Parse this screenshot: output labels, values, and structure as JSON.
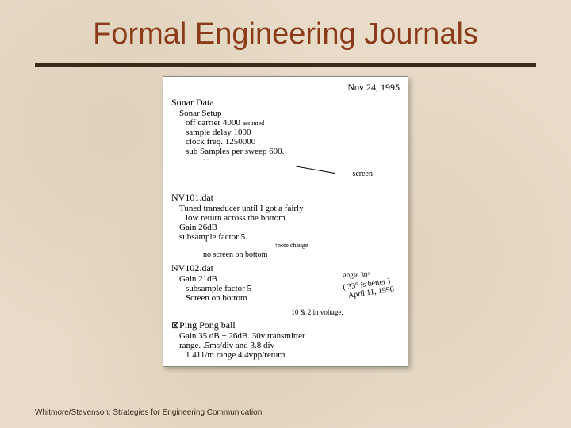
{
  "slide": {
    "title": "Formal Engineering Journals",
    "title_color": "#8b3a1a",
    "rule_color": "#3a2a1a",
    "background_color": "#e8dcc8"
  },
  "journal": {
    "date": "Nov 24, 1995",
    "heading": "Sonar Data",
    "setup_label": "Sonar Setup",
    "off_carrier": "off carrier 4000",
    "assumed": "assumed",
    "sample_delay": "sample delay 1000",
    "clock_freq": "clock freq.   1250000",
    "samples_sweep_strike": "sub",
    "samples_sweep": "Samples per sweep 600.",
    "screen_label": "screen",
    "nv101": {
      "name": "NV101.dat",
      "line1": "Tuned transducer until I got a fairly",
      "line2": "low return across the bottom.",
      "gain": "Gain 26dB",
      "subsample": "subsample factor 5.",
      "note_change": "↑note change",
      "no_screen": "no screen on bottom"
    },
    "angle": {
      "deg": "angle 30°",
      "better": "33° is better",
      "date_note": "April 11, 1996"
    },
    "nv102": {
      "name": "NV102.dat",
      "gain": "Gain 21dB",
      "subsample": "subsample factor 5",
      "screen_on": "Screen on bottom"
    },
    "volt_note": "10 & 2 in voltage.",
    "ping": {
      "label": "⊠Ping Pong ball",
      "gain_line": "Gain 35 dB  +  26dB.   30v transmitter",
      "range_line": "range.   .5ms/div and 3.8  div",
      "final_line": "1.411/m range    4.4vpp/return"
    }
  },
  "footer": "Whitmore/Stevenson: Strategies for Engineering Communication"
}
